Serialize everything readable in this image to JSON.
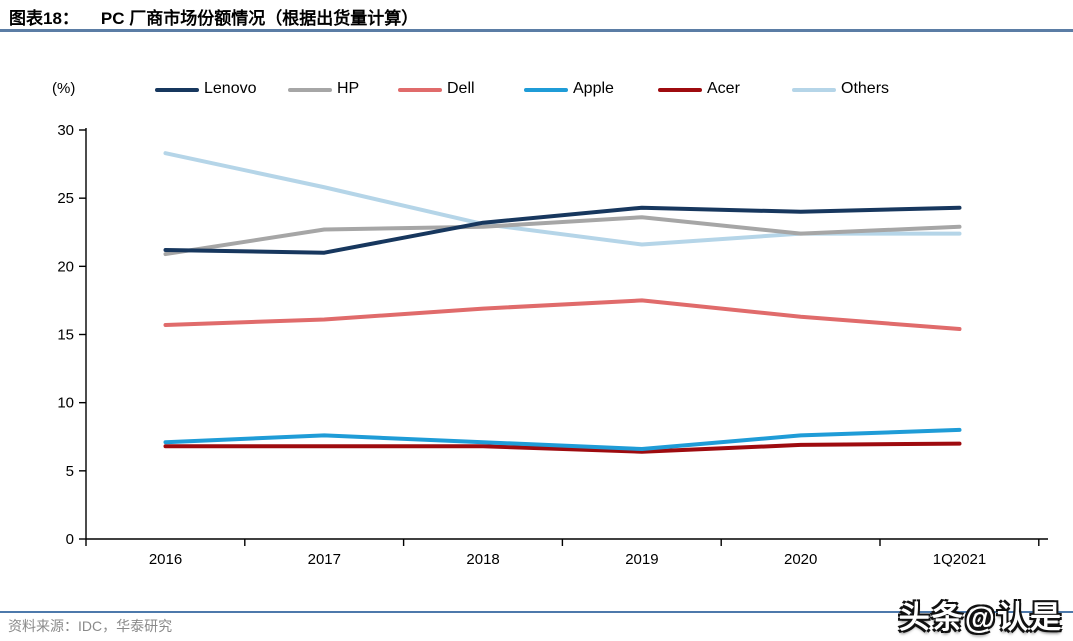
{
  "header": {
    "figure_label": "图表18：",
    "title": "PC 厂商市场份额情况（根据出货量计算）"
  },
  "chart_data": {
    "type": "line",
    "title": "PC 厂商市场份额情况（根据出货量计算）",
    "unit_label": "(%)",
    "categories": [
      "2016",
      "2017",
      "2018",
      "2019",
      "2020",
      "1Q2021"
    ],
    "series": [
      {
        "name": "Lenovo",
        "color": "#17375E",
        "values": [
          21.2,
          21.0,
          23.2,
          24.3,
          24.0,
          24.3
        ]
      },
      {
        "name": "HP",
        "color": "#A6A6A6",
        "values": [
          20.9,
          22.7,
          22.9,
          23.6,
          22.4,
          22.9
        ]
      },
      {
        "name": "Dell",
        "color": "#E06B6B",
        "values": [
          15.7,
          16.1,
          16.9,
          17.5,
          16.3,
          15.4
        ]
      },
      {
        "name": "Apple",
        "color": "#1F9CD7",
        "values": [
          7.1,
          7.6,
          7.1,
          6.6,
          7.6,
          8.0
        ]
      },
      {
        "name": "Acer",
        "color": "#9E0B0F",
        "values": [
          6.8,
          6.8,
          6.8,
          6.4,
          6.9,
          7.0
        ]
      },
      {
        "name": "Others",
        "color": "#B5D5E8",
        "values": [
          28.3,
          25.8,
          23.1,
          21.6,
          22.4,
          22.4
        ]
      }
    ],
    "ylim": [
      0,
      30
    ],
    "ytick_step": 5,
    "yticks": [
      "0",
      "5",
      "10",
      "15",
      "20",
      "25",
      "30"
    ],
    "legend_position": "top",
    "grid": false,
    "xlabel": "",
    "ylabel": ""
  },
  "footer": {
    "source": "资料来源：IDC，华泰研究",
    "watermark": "头条@认是"
  },
  "colors": {
    "title_rule": "#5b7da5",
    "footer_rule": "#4d79ab",
    "axis": "#000000",
    "source_text": "#8a8a8a"
  }
}
